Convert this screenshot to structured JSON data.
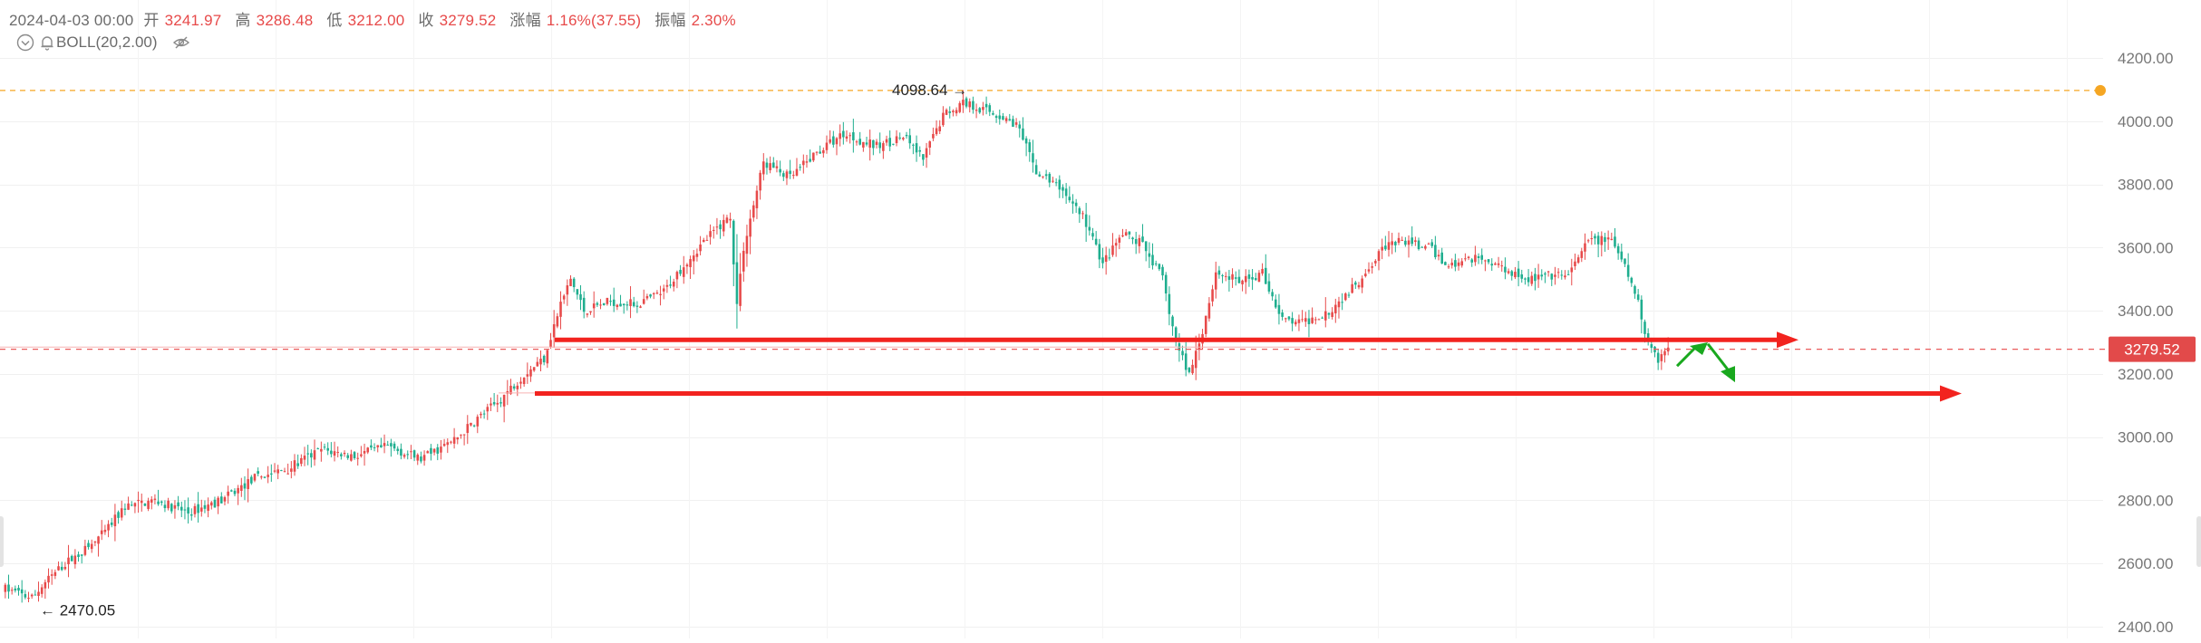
{
  "header": {
    "date": "2024-04-03 00:00",
    "open_label": "开",
    "open": "3241.97",
    "high_label": "高",
    "high": "3286.48",
    "low_label": "低",
    "low": "3212.00",
    "close_label": "收",
    "close": "3279.52",
    "change_label": "涨幅",
    "change": "1.16%(37.55)",
    "amplitude_label": "振幅",
    "amplitude": "2.30%"
  },
  "indicator": {
    "label": "BOLL(20,2.00)",
    "icons": [
      "chevron-down-icon",
      "bell-icon",
      "eye-off-icon"
    ]
  },
  "colors": {
    "up": "#e74a4a",
    "down": "#1fae8f",
    "annotation_red": "#f2231f",
    "annotation_green": "#19a81e",
    "max_line": "#f5a623"
  },
  "chart_data": {
    "type": "candlestick",
    "y_axis": {
      "side": "right",
      "min": 2400,
      "max": 4200,
      "ticks": [
        "4200.00",
        "4000.00",
        "3800.00",
        "3600.00",
        "3400.00",
        "3200.00",
        "3000.00",
        "2800.00",
        "2600.00",
        "2400.00"
      ]
    },
    "grid": true,
    "last_price": "3279.52",
    "max_label": "4098.64",
    "min_label": "2470.05",
    "anchors": [
      [
        0,
        2520
      ],
      [
        8,
        2490
      ],
      [
        12,
        2540
      ],
      [
        18,
        2600
      ],
      [
        25,
        2650
      ],
      [
        30,
        2700
      ],
      [
        36,
        2780
      ],
      [
        45,
        2800
      ],
      [
        55,
        2760
      ],
      [
        65,
        2800
      ],
      [
        75,
        2870
      ],
      [
        85,
        2900
      ],
      [
        95,
        2960
      ],
      [
        105,
        2940
      ],
      [
        115,
        2970
      ],
      [
        125,
        2930
      ],
      [
        135,
        2990
      ],
      [
        142,
        3060
      ],
      [
        148,
        3110
      ],
      [
        156,
        3200
      ],
      [
        162,
        3250
      ],
      [
        167,
        3420
      ],
      [
        170,
        3500
      ],
      [
        174,
        3400
      ],
      [
        182,
        3430
      ],
      [
        190,
        3420
      ],
      [
        198,
        3460
      ],
      [
        205,
        3560
      ],
      [
        212,
        3640
      ],
      [
        218,
        3700
      ],
      [
        220,
        3420
      ],
      [
        222,
        3600
      ],
      [
        228,
        3870
      ],
      [
        236,
        3820
      ],
      [
        244,
        3900
      ],
      [
        252,
        3960
      ],
      [
        262,
        3920
      ],
      [
        270,
        3950
      ],
      [
        276,
        3880
      ],
      [
        282,
        4020
      ],
      [
        288,
        4060
      ],
      [
        296,
        4030
      ],
      [
        304,
        3990
      ],
      [
        310,
        3840
      ],
      [
        318,
        3780
      ],
      [
        324,
        3700
      ],
      [
        330,
        3550
      ],
      [
        336,
        3640
      ],
      [
        342,
        3610
      ],
      [
        348,
        3500
      ],
      [
        352,
        3300
      ],
      [
        356,
        3200
      ],
      [
        360,
        3340
      ],
      [
        364,
        3520
      ],
      [
        372,
        3490
      ],
      [
        378,
        3520
      ],
      [
        384,
        3370
      ],
      [
        390,
        3360
      ],
      [
        398,
        3400
      ],
      [
        406,
        3480
      ],
      [
        414,
        3600
      ],
      [
        420,
        3620
      ],
      [
        428,
        3600
      ],
      [
        434,
        3540
      ],
      [
        442,
        3570
      ],
      [
        450,
        3540
      ],
      [
        458,
        3500
      ],
      [
        464,
        3510
      ],
      [
        470,
        3510
      ],
      [
        476,
        3620
      ],
      [
        482,
        3630
      ],
      [
        486,
        3560
      ],
      [
        490,
        3460
      ],
      [
        494,
        3300
      ],
      [
        497,
        3250
      ],
      [
        500,
        3280
      ]
    ]
  },
  "annotations": {
    "arrows": 2,
    "green_arrows": 2
  }
}
